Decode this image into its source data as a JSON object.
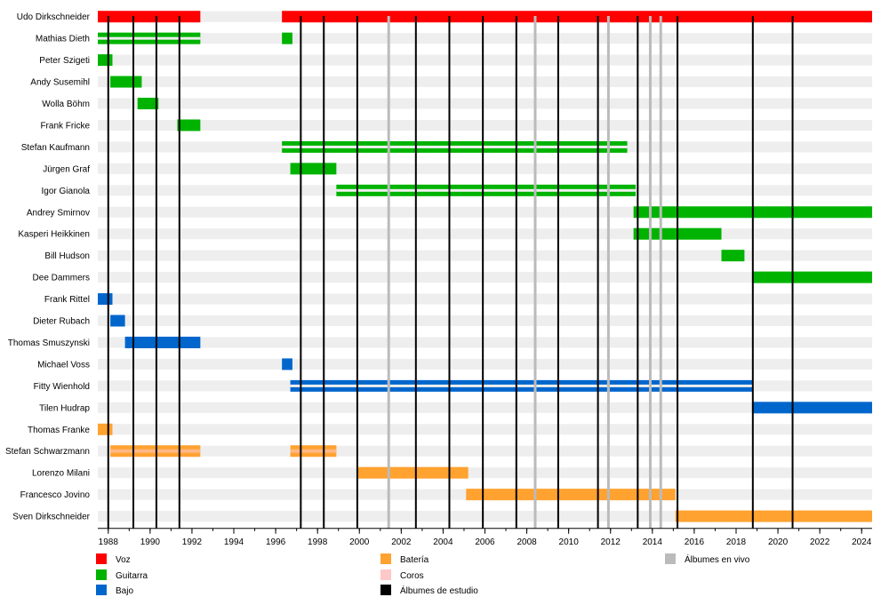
{
  "chart_data": {
    "type": "timeline",
    "x_range": [
      1987.5,
      2024.5
    ],
    "tick_labels": [
      "1988",
      "1990",
      "1992",
      "1994",
      "1996",
      "1998",
      "2000",
      "2002",
      "2004",
      "2006",
      "2008",
      "2010",
      "2012",
      "2014",
      "2016",
      "2018",
      "2020",
      "2022",
      "2024"
    ],
    "ticks": [
      1988,
      1990,
      1992,
      1994,
      1996,
      1998,
      2000,
      2002,
      2004,
      2006,
      2008,
      2010,
      2012,
      2014,
      2016,
      2018,
      2020,
      2022,
      2024
    ],
    "roles": {
      "voz": {
        "label": "Voz",
        "color": "#ff0000"
      },
      "guitarra": {
        "label": "Guitarra",
        "color": "#00b300"
      },
      "bajo": {
        "label": "Bajo",
        "color": "#0066cc"
      },
      "bateria": {
        "label": "Batería",
        "color": "#ffa230"
      },
      "coros": {
        "label": "Coros",
        "color": "#ffc8c8"
      },
      "estudio": {
        "label": "Álbumes de estudio",
        "color": "#000000"
      },
      "vivo": {
        "label": "Álbumes en vivo",
        "color": "#bbbbbb"
      }
    },
    "members": [
      {
        "name": "Udo Dirkschneider",
        "bars": [
          {
            "role": "voz",
            "start": 1987.5,
            "end": 1992.4
          },
          {
            "role": "voz",
            "start": 1996.3,
            "end": 2024.5
          }
        ]
      },
      {
        "name": "Mathias Dieth",
        "bars": [
          {
            "role": "guitarra",
            "start": 1987.5,
            "end": 1992.4,
            "split": true
          },
          {
            "role": "guitarra",
            "start": 1996.3,
            "end": 1996.8
          }
        ]
      },
      {
        "name": "Peter Szigeti",
        "bars": [
          {
            "role": "guitarra",
            "start": 1987.5,
            "end": 1988.2
          }
        ]
      },
      {
        "name": "Andy Susemihl",
        "bars": [
          {
            "role": "guitarra",
            "start": 1988.1,
            "end": 1989.6
          }
        ]
      },
      {
        "name": "Wolla Böhm",
        "bars": [
          {
            "role": "guitarra",
            "start": 1989.4,
            "end": 1990.4
          }
        ]
      },
      {
        "name": "Frank Fricke",
        "bars": [
          {
            "role": "guitarra",
            "start": 1991.3,
            "end": 1992.4
          }
        ]
      },
      {
        "name": "Stefan Kaufmann",
        "bars": [
          {
            "role": "guitarra",
            "start": 1996.3,
            "end": 2012.8,
            "split": true
          }
        ]
      },
      {
        "name": "Jürgen Graf",
        "bars": [
          {
            "role": "guitarra",
            "start": 1996.7,
            "end": 1998.9
          }
        ]
      },
      {
        "name": "Igor Gianola",
        "bars": [
          {
            "role": "guitarra",
            "start": 1998.9,
            "end": 2013.2,
            "split": true
          }
        ]
      },
      {
        "name": "Andrey Smirnov",
        "bars": [
          {
            "role": "guitarra",
            "start": 2013.1,
            "end": 2024.5
          }
        ]
      },
      {
        "name": "Kasperi Heikkinen",
        "bars": [
          {
            "role": "guitarra",
            "start": 2013.1,
            "end": 2017.3
          }
        ]
      },
      {
        "name": "Bill Hudson",
        "bars": [
          {
            "role": "guitarra",
            "start": 2017.3,
            "end": 2018.4
          }
        ]
      },
      {
        "name": "Dee Dammers",
        "bars": [
          {
            "role": "guitarra",
            "start": 2018.8,
            "end": 2024.5
          }
        ]
      },
      {
        "name": "Frank Rittel",
        "bars": [
          {
            "role": "bajo",
            "start": 1987.5,
            "end": 1988.2
          }
        ]
      },
      {
        "name": "Dieter Rubach",
        "bars": [
          {
            "role": "bajo",
            "start": 1988.1,
            "end": 1988.8
          }
        ]
      },
      {
        "name": "Thomas Smuszynski",
        "bars": [
          {
            "role": "bajo",
            "start": 1988.8,
            "end": 1992.4
          }
        ]
      },
      {
        "name": "Michael Voss",
        "bars": [
          {
            "role": "bajo",
            "start": 1996.3,
            "end": 1996.8
          }
        ]
      },
      {
        "name": "Fitty Wienhold",
        "bars": [
          {
            "role": "bajo",
            "start": 1996.7,
            "end": 2018.8,
            "split": true
          }
        ]
      },
      {
        "name": "Tilen Hudrap",
        "bars": [
          {
            "role": "bajo",
            "start": 2018.8,
            "end": 2024.5
          }
        ]
      },
      {
        "name": "Thomas Franke",
        "bars": [
          {
            "role": "bateria",
            "start": 1987.5,
            "end": 1988.2
          }
        ]
      },
      {
        "name": "Stefan Schwarzmann",
        "bars": [
          {
            "role": "bateria",
            "start": 1988.1,
            "end": 1992.4,
            "coros": true
          },
          {
            "role": "bateria",
            "start": 1996.7,
            "end": 1998.9,
            "coros": true
          }
        ]
      },
      {
        "name": "Lorenzo Milani",
        "bars": [
          {
            "role": "bateria",
            "start": 1999.9,
            "end": 2005.2
          }
        ]
      },
      {
        "name": "Francesco Jovino",
        "bars": [
          {
            "role": "bateria",
            "start": 2005.1,
            "end": 2015.1
          }
        ]
      },
      {
        "name": "Sven Dirkschneider",
        "bars": [
          {
            "role": "bateria",
            "start": 2015.1,
            "end": 2024.5
          }
        ]
      }
    ],
    "studio_albums": [
      1988.0,
      1989.2,
      1990.3,
      1991.4,
      1997.2,
      1998.3,
      1999.9,
      2002.7,
      2004.3,
      2005.9,
      2007.5,
      2009.5,
      2011.4,
      2013.3,
      2015.2,
      2018.8,
      2020.7
    ],
    "live_albums": [
      2001.4,
      2008.4,
      2011.9,
      2013.9,
      2014.4
    ]
  }
}
